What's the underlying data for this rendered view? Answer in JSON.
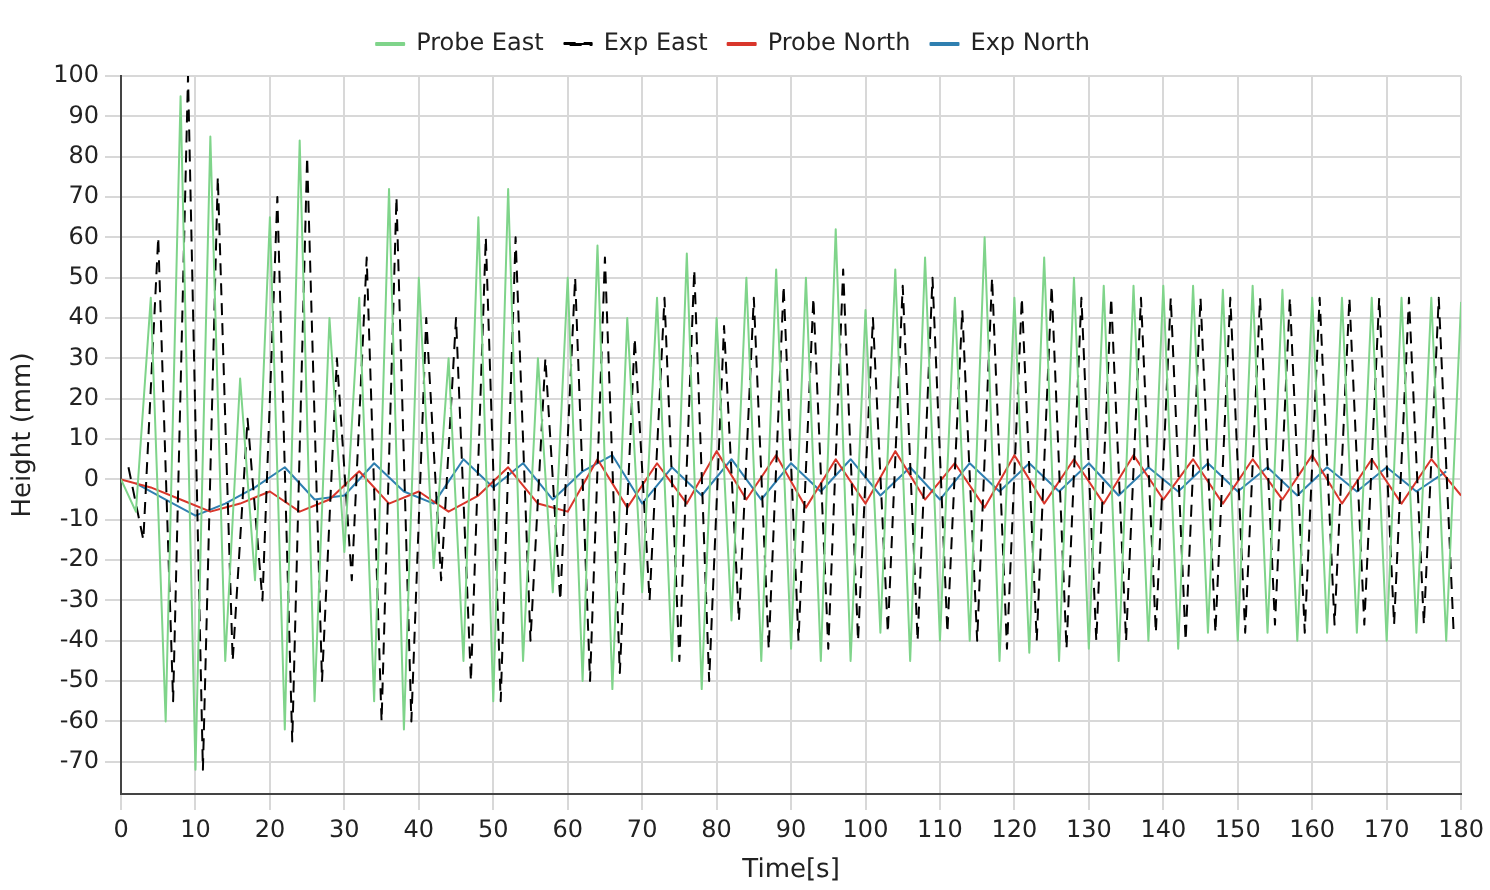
{
  "chart_data": {
    "type": "line",
    "xlabel": "Time[s]",
    "ylabel": "Height (mm)",
    "xlim": [
      0,
      180
    ],
    "xticks": [
      0,
      10,
      20,
      30,
      40,
      50,
      60,
      70,
      80,
      90,
      100,
      110,
      120,
      130,
      140,
      150,
      160,
      170,
      180
    ],
    "ylim": [
      -78,
      100
    ],
    "yticks": [
      -70,
      -60,
      -50,
      -40,
      -30,
      -20,
      -10,
      0,
      10,
      20,
      30,
      40,
      50,
      60,
      70,
      80,
      90,
      100
    ],
    "grid": true,
    "legend": "top",
    "series": [
      {
        "name": "Probe East",
        "color": "#7fd48a",
        "x": [
          0,
          2,
          4,
          6,
          8,
          10,
          12,
          14,
          16,
          18,
          20,
          22,
          24,
          26,
          28,
          30,
          32,
          34,
          36,
          38,
          40,
          42,
          44,
          46,
          48,
          50,
          52,
          54,
          56,
          58,
          60,
          62,
          64,
          66,
          68,
          70,
          72,
          74,
          76,
          78,
          80,
          82,
          84,
          86,
          88,
          90,
          92,
          94,
          96,
          98,
          100,
          102,
          104,
          106,
          108,
          110,
          112,
          114,
          116,
          118,
          120,
          122,
          124,
          126,
          128,
          130,
          132,
          134,
          136,
          138,
          140,
          142,
          144,
          146,
          148,
          150,
          152,
          154,
          156,
          158,
          160,
          162,
          164,
          166,
          168,
          170,
          172,
          174,
          176,
          178,
          180
        ],
        "values": [
          0,
          -8,
          45,
          -60,
          95,
          -72,
          85,
          -45,
          25,
          -25,
          65,
          -62,
          84,
          -55,
          40,
          -18,
          45,
          -55,
          72,
          -62,
          50,
          -22,
          30,
          -45,
          65,
          -55,
          72,
          -45,
          30,
          -28,
          50,
          -50,
          58,
          -52,
          40,
          -28,
          45,
          -45,
          56,
          -52,
          40,
          -35,
          50,
          -45,
          52,
          -42,
          50,
          -45,
          62,
          -45,
          42,
          -38,
          52,
          -45,
          55,
          -40,
          45,
          -40,
          60,
          -45,
          45,
          -43,
          55,
          -45,
          50,
          -42,
          48,
          -45,
          48,
          -40,
          48,
          -42,
          48,
          -38,
          47,
          -40,
          48,
          -38,
          47,
          -40,
          45,
          -38,
          45,
          -38,
          45,
          -40,
          45,
          -38,
          45,
          -40,
          44
        ]
      },
      {
        "name": "Exp East",
        "color": "#000000",
        "line_style": "dashed",
        "x": [
          1,
          3,
          5,
          7,
          9,
          11,
          13,
          15,
          17,
          19,
          21,
          23,
          25,
          27,
          29,
          31,
          33,
          35,
          37,
          39,
          41,
          43,
          45,
          47,
          49,
          51,
          53,
          55,
          57,
          59,
          61,
          63,
          65,
          67,
          69,
          71,
          73,
          75,
          77,
          79,
          81,
          83,
          85,
          87,
          89,
          91,
          93,
          95,
          97,
          99,
          101,
          103,
          105,
          107,
          109,
          111,
          113,
          115,
          117,
          119,
          121,
          123,
          125,
          127,
          129,
          131,
          133,
          135,
          137,
          139,
          141,
          143,
          145,
          147,
          149,
          151,
          153,
          155,
          157,
          159,
          161,
          163,
          165,
          167,
          169,
          171,
          173,
          175,
          177,
          179
        ],
        "values": [
          3,
          -15,
          60,
          -55,
          100,
          -72,
          75,
          -45,
          15,
          -30,
          70,
          -65,
          80,
          -50,
          30,
          -25,
          55,
          -60,
          70,
          -60,
          40,
          -25,
          40,
          -50,
          60,
          -55,
          60,
          -40,
          30,
          -30,
          50,
          -50,
          55,
          -48,
          35,
          -30,
          45,
          -45,
          52,
          -50,
          38,
          -35,
          45,
          -42,
          48,
          -40,
          45,
          -42,
          52,
          -40,
          40,
          -38,
          48,
          -40,
          50,
          -38,
          42,
          -40,
          50,
          -42,
          45,
          -40,
          48,
          -42,
          45,
          -40,
          45,
          -40,
          45,
          -38,
          45,
          -40,
          45,
          -38,
          45,
          -38,
          45,
          -36,
          45,
          -38,
          45,
          -36,
          45,
          -36,
          45,
          -36,
          45,
          -36,
          45,
          -38
        ]
      },
      {
        "name": "Probe North",
        "color": "#d9362b",
        "x": [
          0,
          4,
          8,
          12,
          16,
          20,
          24,
          28,
          32,
          36,
          40,
          44,
          48,
          52,
          56,
          60,
          64,
          68,
          72,
          76,
          80,
          84,
          88,
          92,
          96,
          100,
          104,
          108,
          112,
          116,
          120,
          124,
          128,
          132,
          136,
          140,
          144,
          148,
          152,
          156,
          160,
          164,
          168,
          172,
          176,
          180
        ],
        "values": [
          0,
          -2,
          -5,
          -8,
          -6,
          -3,
          -8,
          -5,
          2,
          -6,
          -3,
          -8,
          -4,
          3,
          -6,
          -8,
          5,
          -7,
          4,
          -6,
          7,
          -5,
          6,
          -7,
          5,
          -6,
          7,
          -5,
          4,
          -7,
          6,
          -6,
          5,
          -6,
          6,
          -5,
          5,
          -6,
          5,
          -5,
          6,
          -6,
          5,
          -6,
          5,
          -4
        ]
      },
      {
        "name": "Exp North",
        "color": "#2f7fb0",
        "x": [
          2,
          6,
          10,
          14,
          18,
          22,
          26,
          30,
          34,
          38,
          42,
          46,
          50,
          54,
          58,
          62,
          66,
          70,
          74,
          78,
          82,
          86,
          90,
          94,
          98,
          102,
          106,
          110,
          114,
          118,
          122,
          126,
          130,
          134,
          138,
          142,
          146,
          150,
          154,
          158,
          162,
          166,
          170,
          174,
          178
        ],
        "values": [
          -1,
          -5,
          -9,
          -6,
          -2,
          3,
          -5,
          -4,
          4,
          -3,
          -6,
          5,
          -2,
          4,
          -5,
          2,
          6,
          -6,
          3,
          -4,
          5,
          -5,
          4,
          -3,
          5,
          -4,
          3,
          -5,
          4,
          -3,
          4,
          -3,
          4,
          -4,
          3,
          -3,
          4,
          -3,
          3,
          -4,
          3,
          -3,
          3,
          -3,
          2
        ]
      }
    ]
  }
}
